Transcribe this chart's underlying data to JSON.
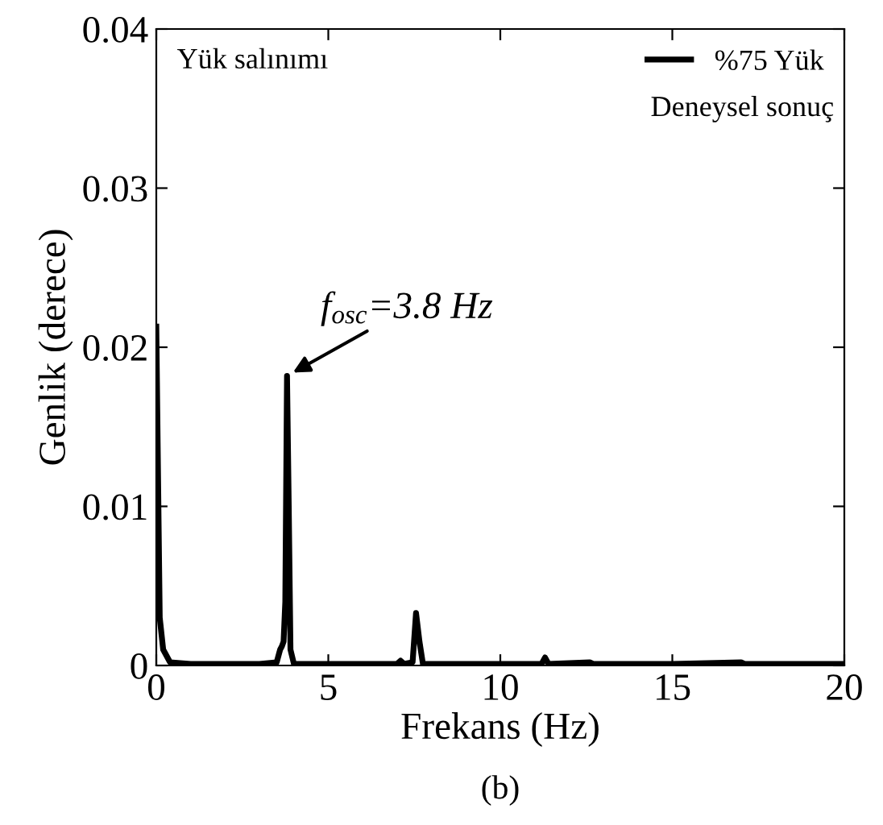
{
  "chart_data": {
    "type": "line",
    "xlabel": "Frekans (Hz)",
    "ylabel": "Genlik (derece)",
    "xlim": [
      0,
      20
    ],
    "xticks": [
      0,
      5,
      10,
      15,
      20
    ],
    "ylim": [
      0,
      0.04
    ],
    "yticks": [
      0,
      0.01,
      0.02,
      0.03,
      0.04
    ],
    "grid": false,
    "legend": "top right",
    "marker": "none",
    "line_style": "solid",
    "series": [
      {
        "name": "%75 Yük",
        "color": "#000000",
        "x": [
          0,
          0.05,
          0.1,
          0.2,
          0.4,
          1,
          2,
          3,
          3.5,
          3.6,
          3.65,
          3.7,
          3.75,
          3.8,
          3.85,
          3.9,
          4.0,
          5,
          6,
          7,
          7.1,
          7.2,
          7.45,
          7.55,
          7.65,
          7.75,
          9,
          11.2,
          11.3,
          11.4,
          12.6,
          12.7,
          15,
          17,
          17.1,
          20
        ],
        "values": [
          0.0213,
          0.012,
          0.003,
          0.001,
          0.0002,
          0.0001,
          0.0001,
          0.0001,
          0.0002,
          0.001,
          0.0012,
          0.0015,
          0.004,
          0.0182,
          0.01,
          0.001,
          0.0001,
          0.0001,
          0.0001,
          0.0001,
          0.0003,
          0.0001,
          0.0002,
          0.0033,
          0.0015,
          0.0001,
          0.0001,
          0.0001,
          0.0005,
          0.0001,
          0.0002,
          0.0001,
          0.0001,
          0.0002,
          0.0001,
          0.0001
        ]
      }
    ],
    "annotations": [
      {
        "text": "f$_{osc}$=3.8 Hz",
        "x": 3.8,
        "y": 0.0182
      },
      "Yük salınımı",
      "Deneysel sonuç",
      "(b)"
    ]
  }
}
